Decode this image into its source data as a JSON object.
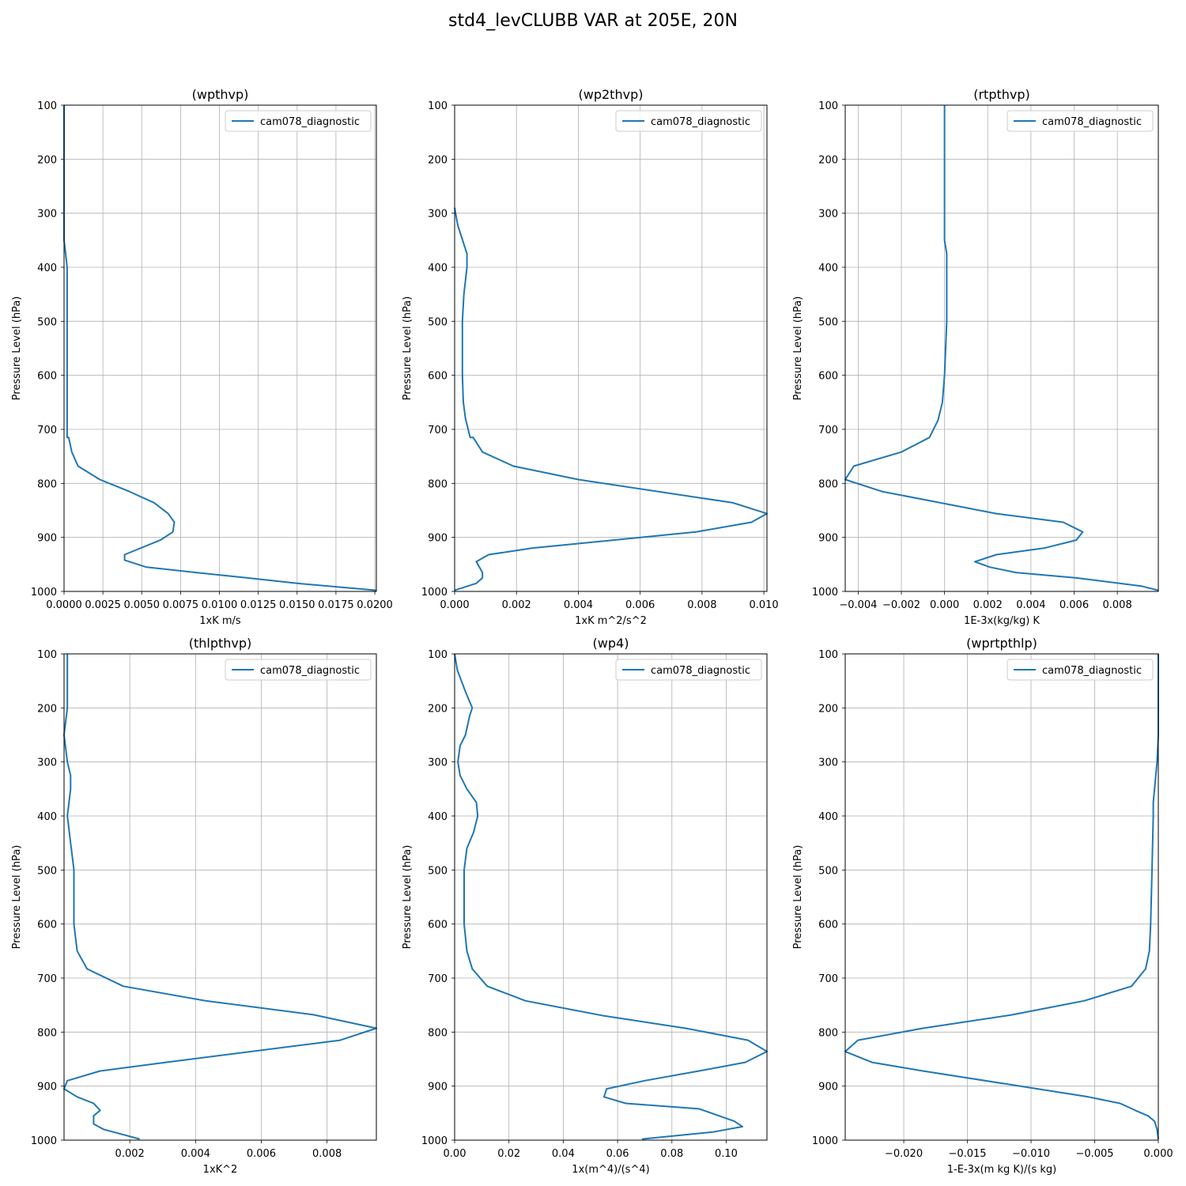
{
  "suptitle": "std4_levCLUBB VAR at 205E, 20N",
  "colors": {
    "series": "#1f77b4",
    "grid": "#b0b0b0"
  },
  "chart_data": [
    {
      "type": "line",
      "title": "(wpthvp)",
      "xlabel": "1xK m/s",
      "ylabel": "Pressure Level (hPa)",
      "xlim": [
        0.0,
        0.0201
      ],
      "ylim": [
        1000,
        100
      ],
      "grid": true,
      "legend": "top-right",
      "xticks": [
        0.0,
        0.0025,
        0.005,
        0.0075,
        0.01,
        0.0125,
        0.015,
        0.0175,
        0.02
      ],
      "xtick_labels": [
        "0.0000",
        "0.0025",
        "0.0050",
        "0.0075",
        "0.0100",
        "0.0125",
        "0.0150",
        "0.0175",
        "0.0200"
      ],
      "yticks": [
        100,
        200,
        300,
        400,
        500,
        600,
        700,
        800,
        900,
        1000
      ],
      "series": [
        {
          "name": "cam078_diagnostic",
          "x": [
            0.0,
            0.0,
            0.0,
            0.0,
            0.0,
            0.0,
            0.0001,
            0.0002,
            0.0002,
            0.0002,
            0.0002,
            0.0002,
            0.0002,
            0.0002,
            0.0002,
            0.0002,
            0.0002,
            0.0002,
            0.0002,
            0.0003,
            0.0005,
            0.0009,
            0.0023,
            0.0042,
            0.0058,
            0.0067,
            0.0071,
            0.007,
            0.0062,
            0.0039,
            0.0039,
            0.0053,
            0.0085,
            0.0118,
            0.015,
            0.0201
          ],
          "y": [
            100,
            150,
            200,
            250,
            300,
            350,
            375,
            400,
            450,
            500,
            550,
            600,
            650,
            680,
            700,
            715,
            715,
            715,
            715,
            715,
            742,
            768,
            793,
            815,
            836,
            856,
            872,
            890,
            905,
            932,
            942,
            955,
            965,
            975,
            985,
            998
          ]
        }
      ]
    },
    {
      "type": "line",
      "title": "(wp2thvp)",
      "xlabel": "1xK m^2/s^2",
      "ylabel": "Pressure Level (hPa)",
      "xlim": [
        0.0,
        0.0101
      ],
      "ylim": [
        1000,
        100
      ],
      "grid": true,
      "legend": "top-right",
      "xticks": [
        0.0,
        0.002,
        0.004,
        0.006,
        0.008,
        0.01
      ],
      "xtick_labels": [
        "0.000",
        "0.002",
        "0.004",
        "0.006",
        "0.008",
        "0.010"
      ],
      "yticks": [
        100,
        200,
        300,
        400,
        500,
        600,
        700,
        800,
        900,
        1000
      ],
      "series": [
        {
          "name": "cam078_diagnostic",
          "x": [
            0.0,
            0.0001,
            0.0004,
            0.0004,
            0.0003,
            0.00025,
            0.00025,
            0.00028,
            0.00035,
            0.0005,
            0.0006,
            0.0009,
            0.0019,
            0.004,
            0.009,
            0.0101,
            0.0096,
            0.0078,
            0.0025,
            0.0011,
            0.0007,
            0.0008,
            0.0009,
            0.0009,
            0.0007,
            0.0
          ],
          "y": [
            290,
            322,
            375,
            400,
            450,
            500,
            600,
            650,
            680,
            715,
            715,
            742,
            768,
            793,
            836,
            856,
            872,
            890,
            920,
            932,
            945,
            955,
            965,
            975,
            985,
            998
          ]
        }
      ]
    },
    {
      "type": "line",
      "title": "(rtpthvp)",
      "xlabel": "1E-3x(kg/kg) K",
      "ylabel": "Pressure Level (hPa)",
      "xlim": [
        -0.0046,
        0.0099
      ],
      "ylim": [
        1000,
        100
      ],
      "grid": true,
      "legend": "top-right",
      "xticks": [
        -0.004,
        -0.002,
        0.0,
        0.002,
        0.004,
        0.006,
        0.008
      ],
      "xtick_labels": [
        "−0.004",
        "−0.002",
        "0.000",
        "0.002",
        "0.004",
        "0.006",
        "0.008"
      ],
      "yticks": [
        100,
        200,
        300,
        400,
        500,
        600,
        700,
        800,
        900,
        1000
      ],
      "series": [
        {
          "name": "cam078_diagnostic",
          "x": [
            0.0,
            0.0,
            0.0,
            0.0,
            0.0,
            0.0001,
            0.0001,
            0.0001,
            0.0,
            -0.0001,
            -0.0003,
            -0.0007,
            -0.002,
            -0.0042,
            -0.0046,
            -0.0029,
            0.0024,
            0.0055,
            0.0064,
            0.0061,
            0.0046,
            0.0024,
            0.0014,
            0.0021,
            0.0033,
            0.0061,
            0.0091,
            0.0099
          ],
          "y": [
            100,
            200,
            250,
            300,
            350,
            375,
            400,
            500,
            600,
            650,
            683,
            715,
            742,
            768,
            793,
            815,
            856,
            872,
            890,
            905,
            920,
            932,
            945,
            955,
            965,
            975,
            990,
            998
          ]
        }
      ]
    },
    {
      "type": "line",
      "title": "(thlpthvp)",
      "xlabel": "1xK^2",
      "ylabel": "Pressure Level (hPa)",
      "xlim": [
        0.0,
        0.0095
      ],
      "ylim": [
        1000,
        100
      ],
      "grid": true,
      "legend": "top-right",
      "xticks": [
        0.002,
        0.004,
        0.006,
        0.008
      ],
      "xtick_labels": [
        "0.002",
        "0.004",
        "0.006",
        "0.008"
      ],
      "yticks": [
        100,
        200,
        300,
        400,
        500,
        600,
        700,
        800,
        900,
        1000
      ],
      "series": [
        {
          "name": "cam078_diagnostic",
          "x": [
            0.0001,
            0.0001,
            0.0001,
            0.0,
            0.0001,
            0.0002,
            0.0002,
            0.0001,
            0.0002,
            0.0003,
            0.0003,
            0.0004,
            0.0007,
            0.0018,
            0.0043,
            0.0076,
            0.0095,
            0.0084,
            0.0031,
            0.0011,
            0.0001,
            0.0,
            0.0004,
            0.0009,
            0.0011,
            0.0009,
            0.0009,
            0.0012,
            0.0023
          ],
          "y": [
            100,
            150,
            200,
            250,
            300,
            325,
            350,
            400,
            450,
            500,
            600,
            650,
            683,
            715,
            742,
            768,
            793,
            815,
            856,
            872,
            890,
            905,
            920,
            932,
            945,
            955,
            970,
            980,
            998
          ]
        }
      ]
    },
    {
      "type": "line",
      "title": "(wp4)",
      "xlabel": "1x(m^4)/(s^4)",
      "ylabel": "Pressure Level (hPa)",
      "xlim": [
        0.0,
        0.115
      ],
      "ylim": [
        1000,
        100
      ],
      "grid": true,
      "legend": "top-right",
      "xticks": [
        0.0,
        0.02,
        0.04,
        0.06,
        0.08,
        0.1
      ],
      "xtick_labels": [
        "0.00",
        "0.02",
        "0.04",
        "0.06",
        "0.08",
        "0.10"
      ],
      "yticks": [
        100,
        200,
        300,
        400,
        500,
        600,
        700,
        800,
        900,
        1000
      ],
      "series": [
        {
          "name": "cam078_diagnostic",
          "x": [
            0.0,
            0.001,
            0.004,
            0.0065,
            0.0055,
            0.004,
            0.002,
            0.0012,
            0.002,
            0.0045,
            0.008,
            0.0085,
            0.007,
            0.0045,
            0.0035,
            0.0035,
            0.0035,
            0.0045,
            0.0065,
            0.012,
            0.026,
            0.055,
            0.085,
            0.108,
            0.115,
            0.107,
            0.09,
            0.07,
            0.056,
            0.055,
            0.063,
            0.09,
            0.103,
            0.106,
            0.095,
            0.069
          ],
          "y": [
            100,
            130,
            170,
            200,
            215,
            250,
            270,
            300,
            325,
            350,
            375,
            400,
            430,
            460,
            500,
            550,
            600,
            650,
            683,
            715,
            742,
            770,
            793,
            815,
            836,
            856,
            872,
            890,
            905,
            920,
            932,
            942,
            965,
            975,
            985,
            998
          ]
        }
      ]
    },
    {
      "type": "line",
      "title": "(wprtpthlp)",
      "xlabel": "1-E-3x(m kg K)/(s kg)",
      "ylabel": "Pressure Level (hPa)",
      "xlim": [
        -0.0246,
        0.0
      ],
      "ylim": [
        1000,
        100
      ],
      "grid": true,
      "legend": "top-right",
      "xticks": [
        -0.02,
        -0.015,
        -0.01,
        -0.005,
        0.0
      ],
      "xtick_labels": [
        "−0.020",
        "−0.015",
        "−0.010",
        "−0.005",
        "0.000"
      ],
      "yticks": [
        100,
        200,
        300,
        400,
        500,
        600,
        700,
        800,
        900,
        1000
      ],
      "series": [
        {
          "name": "cam078_diagnostic",
          "x": [
            0.0,
            0.0,
            0.0,
            -0.0001,
            -0.0003,
            -0.0004,
            -0.0004,
            -0.0005,
            -0.0006,
            -0.0007,
            -0.001,
            -0.0021,
            -0.0058,
            -0.0115,
            -0.0185,
            -0.0236,
            -0.0246,
            -0.0225,
            -0.0185,
            -0.0095,
            -0.0055,
            -0.003,
            -0.0018,
            -0.0008,
            -0.0003,
            -0.0001,
            0.0
          ],
          "y": [
            100,
            200,
            250,
            300,
            350,
            375,
            400,
            500,
            600,
            650,
            683,
            715,
            742,
            768,
            793,
            815,
            836,
            856,
            872,
            905,
            920,
            932,
            945,
            955,
            965,
            980,
            998
          ]
        }
      ]
    }
  ]
}
